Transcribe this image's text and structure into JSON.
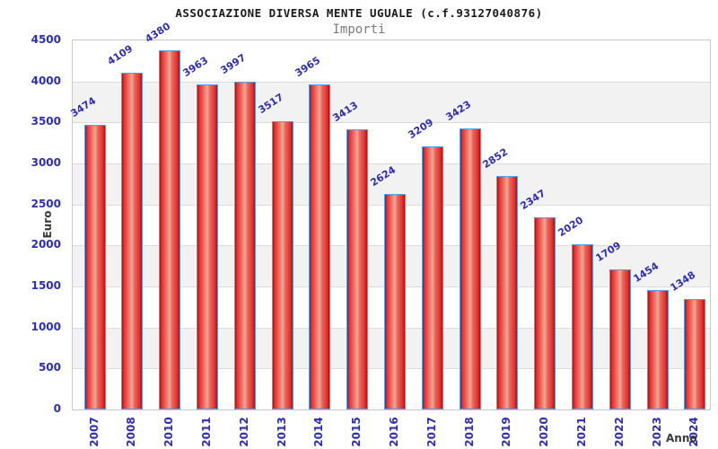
{
  "header": {
    "title": "ASSOCIAZIONE DIVERSA MENTE UGUALE (c.f.93127040876)",
    "subtitle": "Importi"
  },
  "chart_data": {
    "type": "bar",
    "title": "ASSOCIAZIONE DIVERSA MENTE UGUALE (c.f.93127040876)",
    "subtitle": "Importi",
    "xlabel": "Anno",
    "ylabel": "Euro",
    "categories": [
      "2007",
      "2008",
      "2010",
      "2011",
      "2012",
      "2013",
      "2014",
      "2015",
      "2016",
      "2017",
      "2018",
      "2019",
      "2020",
      "2021",
      "2022",
      "2023",
      "2024"
    ],
    "values": [
      3474,
      4109,
      4380,
      3963,
      3997,
      3517,
      3965,
      3413,
      2624,
      3209,
      3423,
      2852,
      2347,
      2020,
      1709,
      1454,
      1348
    ],
    "ylim": [
      0,
      4500
    ],
    "ytick_step": 500,
    "grid": true,
    "legend": "none",
    "colors": {
      "bar_fill_main": "#e62e2e",
      "bar_fill_light": "#f2a898",
      "bar_fill_dark": "#a81212",
      "bar_border": "#4aa2f0",
      "value_label": "#2d2dbb",
      "tick_label": "#2d2dbb",
      "axis_name": "#3a3a3a",
      "band_gray": "#f2f2f2",
      "grid_line": "#dcdcdc",
      "plot_border": "#c9c9c9",
      "title_color": "#1a1a1a",
      "subtitle_color": "#7d7d7d"
    }
  }
}
